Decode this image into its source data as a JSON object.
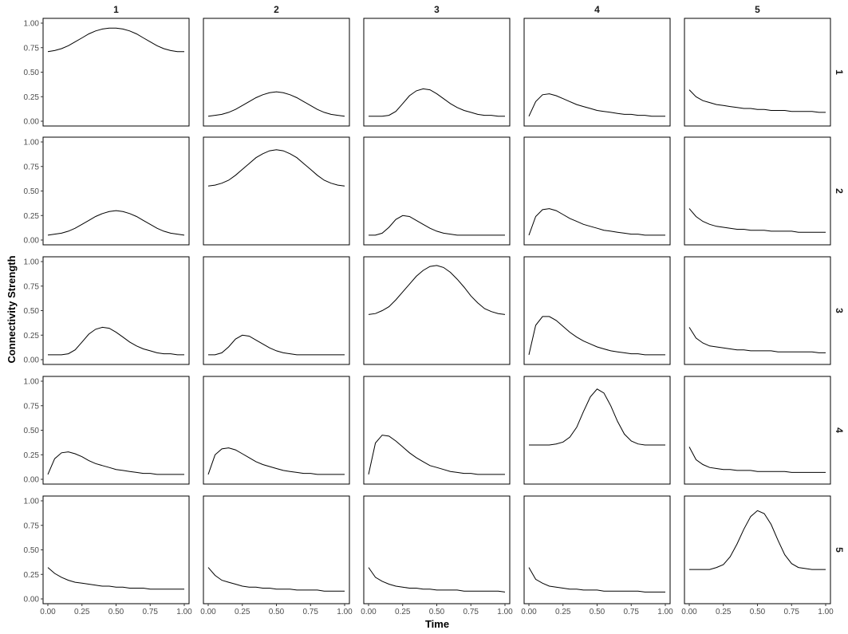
{
  "chart_data": {
    "type": "line",
    "facet_layout": "grid",
    "column_labels": [
      "1",
      "2",
      "3",
      "4",
      "5"
    ],
    "row_labels": [
      "1",
      "2",
      "3",
      "4",
      "5"
    ],
    "xlabel": "Time",
    "ylabel": "Connectivity Strength",
    "xlim": [
      0,
      1
    ],
    "ylim": [
      0,
      1
    ],
    "x_ticks": [
      "0.00",
      "0.25",
      "0.50",
      "0.75",
      "1.00"
    ],
    "y_ticks": [
      "0.00",
      "0.25",
      "0.50",
      "0.75",
      "1.00"
    ],
    "grid": false,
    "line_color": "#000000",
    "x": [
      0,
      0.05,
      0.1,
      0.15,
      0.2,
      0.25,
      0.3,
      0.35,
      0.4,
      0.45,
      0.5,
      0.55,
      0.6,
      0.65,
      0.7,
      0.75,
      0.8,
      0.85,
      0.9,
      0.95,
      1.0
    ],
    "panels": [
      [
        {
          "y": [
            0.71,
            0.72,
            0.74,
            0.77,
            0.81,
            0.85,
            0.89,
            0.92,
            0.94,
            0.95,
            0.95,
            0.94,
            0.92,
            0.89,
            0.85,
            0.81,
            0.77,
            0.74,
            0.72,
            0.71,
            0.71
          ]
        },
        {
          "y": [
            0.05,
            0.06,
            0.07,
            0.09,
            0.12,
            0.16,
            0.2,
            0.24,
            0.27,
            0.29,
            0.3,
            0.29,
            0.27,
            0.24,
            0.2,
            0.16,
            0.12,
            0.09,
            0.07,
            0.06,
            0.05
          ]
        },
        {
          "y": [
            0.05,
            0.05,
            0.05,
            0.06,
            0.1,
            0.18,
            0.26,
            0.31,
            0.33,
            0.32,
            0.28,
            0.23,
            0.18,
            0.14,
            0.11,
            0.09,
            0.07,
            0.06,
            0.06,
            0.05,
            0.05
          ]
        },
        {
          "y": [
            0.05,
            0.2,
            0.27,
            0.28,
            0.26,
            0.23,
            0.2,
            0.17,
            0.15,
            0.13,
            0.11,
            0.1,
            0.09,
            0.08,
            0.07,
            0.07,
            0.06,
            0.06,
            0.05,
            0.05,
            0.05
          ]
        },
        {
          "y": [
            0.32,
            0.25,
            0.21,
            0.19,
            0.17,
            0.16,
            0.15,
            0.14,
            0.13,
            0.13,
            0.12,
            0.12,
            0.11,
            0.11,
            0.11,
            0.1,
            0.1,
            0.1,
            0.1,
            0.09,
            0.09
          ]
        }
      ],
      [
        {
          "y": [
            0.05,
            0.06,
            0.07,
            0.09,
            0.12,
            0.16,
            0.2,
            0.24,
            0.27,
            0.29,
            0.3,
            0.29,
            0.27,
            0.24,
            0.2,
            0.16,
            0.12,
            0.09,
            0.07,
            0.06,
            0.05
          ]
        },
        {
          "y": [
            0.55,
            0.56,
            0.58,
            0.61,
            0.66,
            0.72,
            0.78,
            0.84,
            0.88,
            0.91,
            0.92,
            0.91,
            0.88,
            0.84,
            0.78,
            0.72,
            0.66,
            0.61,
            0.58,
            0.56,
            0.55
          ]
        },
        {
          "y": [
            0.05,
            0.05,
            0.07,
            0.13,
            0.21,
            0.25,
            0.24,
            0.2,
            0.16,
            0.12,
            0.09,
            0.07,
            0.06,
            0.05,
            0.05,
            0.05,
            0.05,
            0.05,
            0.05,
            0.05,
            0.05
          ]
        },
        {
          "y": [
            0.05,
            0.24,
            0.31,
            0.32,
            0.3,
            0.26,
            0.22,
            0.19,
            0.16,
            0.14,
            0.12,
            0.1,
            0.09,
            0.08,
            0.07,
            0.06,
            0.06,
            0.05,
            0.05,
            0.05,
            0.05
          ]
        },
        {
          "y": [
            0.32,
            0.24,
            0.19,
            0.16,
            0.14,
            0.13,
            0.12,
            0.11,
            0.11,
            0.1,
            0.1,
            0.1,
            0.09,
            0.09,
            0.09,
            0.09,
            0.08,
            0.08,
            0.08,
            0.08,
            0.08
          ]
        }
      ],
      [
        {
          "y": [
            0.05,
            0.05,
            0.05,
            0.06,
            0.1,
            0.18,
            0.26,
            0.31,
            0.33,
            0.32,
            0.28,
            0.23,
            0.18,
            0.14,
            0.11,
            0.09,
            0.07,
            0.06,
            0.06,
            0.05,
            0.05
          ]
        },
        {
          "y": [
            0.05,
            0.05,
            0.07,
            0.13,
            0.21,
            0.25,
            0.24,
            0.2,
            0.16,
            0.12,
            0.09,
            0.07,
            0.06,
            0.05,
            0.05,
            0.05,
            0.05,
            0.05,
            0.05,
            0.05,
            0.05
          ]
        },
        {
          "y": [
            0.46,
            0.47,
            0.5,
            0.54,
            0.61,
            0.69,
            0.77,
            0.85,
            0.91,
            0.95,
            0.96,
            0.94,
            0.89,
            0.82,
            0.74,
            0.65,
            0.58,
            0.52,
            0.49,
            0.47,
            0.46
          ]
        },
        {
          "y": [
            0.05,
            0.35,
            0.44,
            0.44,
            0.4,
            0.34,
            0.28,
            0.23,
            0.19,
            0.16,
            0.13,
            0.11,
            0.09,
            0.08,
            0.07,
            0.06,
            0.06,
            0.05,
            0.05,
            0.05,
            0.05
          ]
        },
        {
          "y": [
            0.33,
            0.22,
            0.17,
            0.14,
            0.13,
            0.12,
            0.11,
            0.1,
            0.1,
            0.09,
            0.09,
            0.09,
            0.09,
            0.08,
            0.08,
            0.08,
            0.08,
            0.08,
            0.08,
            0.07,
            0.07
          ]
        }
      ],
      [
        {
          "y": [
            0.05,
            0.21,
            0.27,
            0.28,
            0.26,
            0.23,
            0.19,
            0.16,
            0.14,
            0.12,
            0.1,
            0.09,
            0.08,
            0.07,
            0.06,
            0.06,
            0.05,
            0.05,
            0.05,
            0.05,
            0.05
          ]
        },
        {
          "y": [
            0.05,
            0.25,
            0.31,
            0.32,
            0.3,
            0.26,
            0.22,
            0.18,
            0.15,
            0.13,
            0.11,
            0.09,
            0.08,
            0.07,
            0.06,
            0.06,
            0.05,
            0.05,
            0.05,
            0.05,
            0.05
          ]
        },
        {
          "y": [
            0.05,
            0.37,
            0.45,
            0.44,
            0.39,
            0.33,
            0.27,
            0.22,
            0.18,
            0.14,
            0.12,
            0.1,
            0.08,
            0.07,
            0.06,
            0.06,
            0.05,
            0.05,
            0.05,
            0.05,
            0.05
          ]
        },
        {
          "y": [
            0.35,
            0.35,
            0.35,
            0.35,
            0.36,
            0.38,
            0.43,
            0.53,
            0.69,
            0.84,
            0.92,
            0.88,
            0.75,
            0.59,
            0.46,
            0.39,
            0.36,
            0.35,
            0.35,
            0.35,
            0.35
          ]
        },
        {
          "y": [
            0.33,
            0.2,
            0.15,
            0.12,
            0.11,
            0.1,
            0.1,
            0.09,
            0.09,
            0.09,
            0.08,
            0.08,
            0.08,
            0.08,
            0.08,
            0.07,
            0.07,
            0.07,
            0.07,
            0.07,
            0.07
          ]
        }
      ],
      [
        {
          "y": [
            0.32,
            0.26,
            0.22,
            0.19,
            0.17,
            0.16,
            0.15,
            0.14,
            0.13,
            0.13,
            0.12,
            0.12,
            0.11,
            0.11,
            0.11,
            0.1,
            0.1,
            0.1,
            0.1,
            0.1,
            0.1
          ]
        },
        {
          "y": [
            0.32,
            0.24,
            0.19,
            0.17,
            0.15,
            0.13,
            0.12,
            0.12,
            0.11,
            0.11,
            0.1,
            0.1,
            0.1,
            0.09,
            0.09,
            0.09,
            0.09,
            0.08,
            0.08,
            0.08,
            0.08
          ]
        },
        {
          "y": [
            0.32,
            0.22,
            0.18,
            0.15,
            0.13,
            0.12,
            0.11,
            0.11,
            0.1,
            0.1,
            0.09,
            0.09,
            0.09,
            0.09,
            0.08,
            0.08,
            0.08,
            0.08,
            0.08,
            0.08,
            0.07
          ]
        },
        {
          "y": [
            0.32,
            0.2,
            0.16,
            0.13,
            0.12,
            0.11,
            0.1,
            0.1,
            0.09,
            0.09,
            0.09,
            0.08,
            0.08,
            0.08,
            0.08,
            0.08,
            0.08,
            0.07,
            0.07,
            0.07,
            0.07
          ]
        },
        {
          "y": [
            0.3,
            0.3,
            0.3,
            0.3,
            0.32,
            0.35,
            0.43,
            0.56,
            0.71,
            0.84,
            0.9,
            0.87,
            0.76,
            0.6,
            0.45,
            0.36,
            0.32,
            0.31,
            0.3,
            0.3,
            0.3
          ]
        }
      ]
    ]
  }
}
